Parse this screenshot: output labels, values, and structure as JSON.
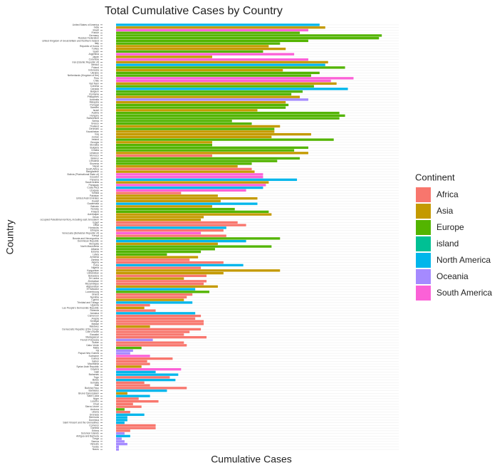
{
  "chart_data": {
    "type": "bar",
    "orientation": "horizontal",
    "title": "Total Cumulative Cases by Country",
    "x_label": "Cumulative Cases",
    "y_label": "Country",
    "legend_title": "Continent",
    "legend_position": "right",
    "grid": true,
    "xlim": [
      0,
      100
    ],
    "series": [
      {
        "name": "Africa",
        "color": "#F8766D"
      },
      {
        "name": "Asia",
        "color": "#C49A00"
      },
      {
        "name": "Europe",
        "color": "#53B400"
      },
      {
        "name": "island",
        "color": "#00C094"
      },
      {
        "name": "North America",
        "color": "#00B6EB"
      },
      {
        "name": "Oceania",
        "color": "#A58AFF"
      },
      {
        "name": "South America",
        "color": "#FB61D7"
      }
    ],
    "categories": [
      "United States of America",
      "India",
      "Brazil",
      "France",
      "Germany",
      "Russian Federation",
      "United Kingdom of Great Britain and Northern Ireland",
      "Italy",
      "Republic of Korea",
      "Turkey",
      "Spain",
      "Argentina",
      "Japan",
      "Colombia",
      "Iran (Islamic Republic of)",
      "Mexico",
      "Poland",
      "Indonesia",
      "Ukraine",
      "Netherlands (Kingdom of the)",
      "Peru",
      "Chile",
      "Viet Nam",
      "Czechia",
      "Canada",
      "Belgium",
      "Romania",
      "Philippines",
      "Australia",
      "Malaysia",
      "Portugal",
      "Sweden",
      "Israel",
      "Austria",
      "Hungary",
      "Switzerland",
      "Serbia",
      "Greece",
      "Thailand",
      "Denmark",
      "Kazakhstan",
      "Iraq",
      "Jordan",
      "Ireland",
      "Georgia",
      "Slovakia",
      "Bulgaria",
      "Croatia",
      "Lebanon",
      "Morocco",
      "Belarus",
      "Lithuania",
      "Slovenia",
      "Nepal",
      "South Africa",
      "Bangladesh",
      "Bolivia (Plurinational State of)",
      "Ecuador",
      "Panama",
      "Saudi Arabia",
      "Paraguay",
      "Costa Rica",
      "Uruguay",
      "Tunisia",
      "Pakistan",
      "United Arab Emirates",
      "Kuwait",
      "Guatemala",
      "Bahrain",
      "Norway",
      "Finland",
      "Azerbaijan",
      "Oman",
      "occupied Palestinian territory, including east Jerusalem",
      "Egypt",
      "Libya",
      "Honduras",
      "Ethiopia",
      "Venezuela (Bolivarian Republic of)",
      "Kenya",
      "Bosnia and Herzegovina",
      "Dominican Republic",
      "Mongolia",
      "North Macedonia",
      "Albania",
      "Estonia",
      "Latvia",
      "Armenia",
      "Zambia",
      "Algeria",
      "Cuba",
      "Nigeria",
      "Kyrgyzstan",
      "Uzbekistan",
      "Botswana",
      "Sri Lanka",
      "Zimbabwe",
      "Mozambique",
      "Afghanistan",
      "El Salvador",
      "Luxembourg",
      "Ghana",
      "Namibia",
      "Cyprus",
      "Trinidad and Tobago",
      "Uganda",
      "Lao People's Democratic Republic",
      "Rwanda",
      "Jamaica",
      "Cameroon",
      "Angola",
      "Senegal",
      "Malawi",
      "Maldives",
      "Democratic Republic of the Congo",
      "Côte d'Ivoire",
      "Eswatini",
      "Madagascar",
      "French Polynesia",
      "Sudan",
      "Cabo Verde",
      "Malta",
      "Fiji",
      "Papua New Guinea",
      "Suriname",
      "Guinea",
      "Gabon",
      "Mauritania",
      "Syrian Arab Republic",
      "Guyana",
      "Haiti",
      "Bahamas",
      "Togo",
      "Belize",
      "Somalia",
      "Mali",
      "Burkina Faso",
      "Barbados",
      "Brunei Darussalam",
      "Saint Lucia",
      "Niger",
      "Lesotho",
      "Chad",
      "Sierra Leone",
      "Andorra",
      "Liberia",
      "Grenada",
      "Bermuda",
      "Dominica",
      "Saint Vincent and the Grenadines",
      "Comoros",
      "Gambia",
      "Eritrea",
      "Solomon Islands",
      "Antigua and Barbuda",
      "Tonga",
      "Samoa",
      "Vanuatu",
      "Tuvalu",
      "Nauru"
    ],
    "values": [
      72,
      74,
      68,
      65,
      94,
      93,
      68,
      58,
      54,
      60,
      52,
      63,
      34,
      68,
      75,
      74,
      81,
      59,
      72,
      69,
      84,
      76,
      78,
      70,
      82,
      66,
      62,
      65,
      68,
      60,
      61,
      60,
      50,
      79,
      81,
      79,
      41,
      48,
      58,
      56,
      56,
      69,
      55,
      77,
      34,
      34,
      68,
      63,
      68,
      34,
      65,
      57,
      48,
      43,
      48,
      49,
      52,
      52,
      64,
      54,
      53,
      52,
      46,
      23,
      36,
      50,
      37,
      50,
      34,
      42,
      54,
      55,
      31,
      30,
      43,
      46,
      39,
      38,
      30,
      39,
      58,
      46,
      36,
      55,
      35,
      30,
      18,
      29,
      26,
      38,
      45,
      30,
      58,
      38,
      32,
      24,
      32,
      31,
      36,
      28,
      33,
      27,
      25,
      24,
      27,
      12,
      10,
      14,
      28,
      30,
      28,
      31,
      31,
      12,
      30,
      26,
      24,
      32,
      13,
      24,
      25,
      9,
      6,
      5,
      12,
      20,
      11,
      12,
      9,
      23,
      14,
      22,
      19,
      21,
      10,
      12,
      25,
      18,
      4,
      12,
      8,
      15,
      6,
      9,
      3,
      5,
      10,
      4,
      4,
      3,
      14,
      14,
      5,
      3,
      5,
      2,
      3,
      4,
      1,
      1
    ],
    "groups": [
      "North America",
      "Asia",
      "South America",
      "Europe",
      "Europe",
      "Europe",
      "Europe",
      "Europe",
      "Asia",
      "Asia",
      "Europe",
      "South America",
      "Asia",
      "South America",
      "Asia",
      "North America",
      "Europe",
      "Asia",
      "Europe",
      "Europe",
      "South America",
      "South America",
      "Asia",
      "Europe",
      "North America",
      "Europe",
      "Europe",
      "Asia",
      "Oceania",
      "Asia",
      "Europe",
      "Europe",
      "Asia",
      "Europe",
      "Europe",
      "Europe",
      "Europe",
      "Europe",
      "Asia",
      "Europe",
      "Asia",
      "Asia",
      "Asia",
      "Europe",
      "Asia",
      "Europe",
      "Europe",
      "Europe",
      "Asia",
      "Africa",
      "Europe",
      "Europe",
      "Europe",
      "Asia",
      "Africa",
      "Asia",
      "South America",
      "South America",
      "North America",
      "Asia",
      "South America",
      "North America",
      "South America",
      "Africa",
      "Asia",
      "Asia",
      "Asia",
      "North America",
      "Asia",
      "Europe",
      "Europe",
      "Asia",
      "Asia",
      "Asia",
      "Africa",
      "Africa",
      "North America",
      "Africa",
      "South America",
      "Africa",
      "Europe",
      "North America",
      "Asia",
      "Europe",
      "Europe",
      "Europe",
      "Europe",
      "Asia",
      "Africa",
      "Africa",
      "North America",
      "Africa",
      "Asia",
      "Asia",
      "Africa",
      "Asia",
      "Africa",
      "Africa",
      "Asia",
      "North America",
      "Europe",
      "Africa",
      "Africa",
      "Asia",
      "North America",
      "Africa",
      "Asia",
      "Africa",
      "North America",
      "Africa",
      "Africa",
      "Africa",
      "Africa",
      "Asia",
      "Africa",
      "Africa",
      "Africa",
      "Africa",
      "Oceania",
      "Africa",
      "Africa",
      "Europe",
      "Oceania",
      "Oceania",
      "South America",
      "Africa",
      "Africa",
      "Africa",
      "Asia",
      "South America",
      "North America",
      "North America",
      "Africa",
      "North America",
      "Africa",
      "Africa",
      "Africa",
      "North America",
      "Asia",
      "North America",
      "Africa",
      "Africa",
      "Africa",
      "Africa",
      "Europe",
      "Africa",
      "North America",
      "North America",
      "North America",
      "North America",
      "Africa",
      "Africa",
      "Africa",
      "Oceania",
      "North America",
      "Oceania",
      "Oceania",
      "Oceania",
      "Oceania",
      "Oceania"
    ]
  }
}
